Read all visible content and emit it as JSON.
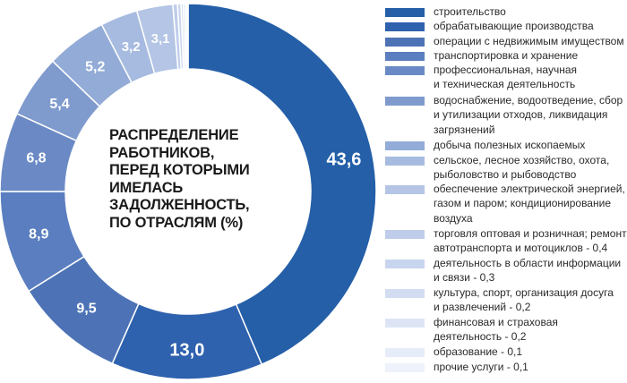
{
  "chart_data": {
    "type": "pie",
    "title_lines": [
      "РАСПРЕДЕЛЕНИЕ",
      "РАБОТНИКОВ,",
      "ПЕРЕД КОТОРЫМИ",
      "ИМЕЛАСЬ",
      "ЗАДОЛЖЕННОСТЬ,",
      "ПО ОТРАСЛЯМ (%)"
    ],
    "slices": [
      {
        "label_lines": [
          "строительство"
        ],
        "value": 43.6,
        "display": "43,6",
        "color": "#245fa8"
      },
      {
        "label_lines": [
          "обрабатывающие производства"
        ],
        "value": 13.0,
        "display": "13,0",
        "color": "#2e61ae"
      },
      {
        "label_lines": [
          "операции с недвижимым имуществом"
        ],
        "value": 9.5,
        "display": "9,5",
        "color": "#4d73b6"
      },
      {
        "label_lines": [
          "транспортировка и хранение"
        ],
        "value": 8.9,
        "display": "8,9",
        "color": "#5a7ebf"
      },
      {
        "label_lines": [
          "профессиональная, научная",
          "и техническая деятельность"
        ],
        "value": 6.8,
        "display": "6,8",
        "color": "#6b8ac5"
      },
      {
        "label_lines": [
          "водоснабжение, водоотведение, сбор",
          "и утилизации отходов, ликвидация",
          "загрязнений"
        ],
        "value": 5.4,
        "display": "5,4",
        "color": "#7f9acd"
      },
      {
        "label_lines": [
          "добыча полезных ископаемых"
        ],
        "value": 5.2,
        "display": "5,2",
        "color": "#93abd7"
      },
      {
        "label_lines": [
          "сельское, лесное хозяйство, охота,",
          "рыболовство и рыбоводство"
        ],
        "value": 3.2,
        "display": "3,2",
        "color": "#a7bbe0"
      },
      {
        "label_lines": [
          "обеспечение электрической энергией,",
          "газом и паром; кондиционирование",
          "воздуха"
        ],
        "value": 3.1,
        "display": "3,1",
        "color": "#b4c5e5"
      },
      {
        "label_lines": [
          "торговля оптовая и розничная; ремонт",
          "автотранспорта и мотоциклов - 0,4"
        ],
        "value": 0.4,
        "display": "",
        "color": "#bfcdea"
      },
      {
        "label_lines": [
          "деятельность в области информации",
          "и связи - 0,3"
        ],
        "value": 0.3,
        "display": "",
        "color": "#c9d5ee"
      },
      {
        "label_lines": [
          "культура, спорт, организация досуга",
          "и развлечений - 0,2"
        ],
        "value": 0.2,
        "display": "",
        "color": "#d3ddf2"
      },
      {
        "label_lines": [
          "финансовая и страховая",
          "деятельность - 0,2"
        ],
        "value": 0.2,
        "display": "",
        "color": "#dde5f5"
      },
      {
        "label_lines": [
          "образование - 0,1"
        ],
        "value": 0.1,
        "display": "",
        "color": "#e6ecf8"
      },
      {
        "label_lines": [
          "прочие услуги - 0,1"
        ],
        "value": 0.1,
        "display": "",
        "color": "#eef2fa"
      }
    ]
  }
}
